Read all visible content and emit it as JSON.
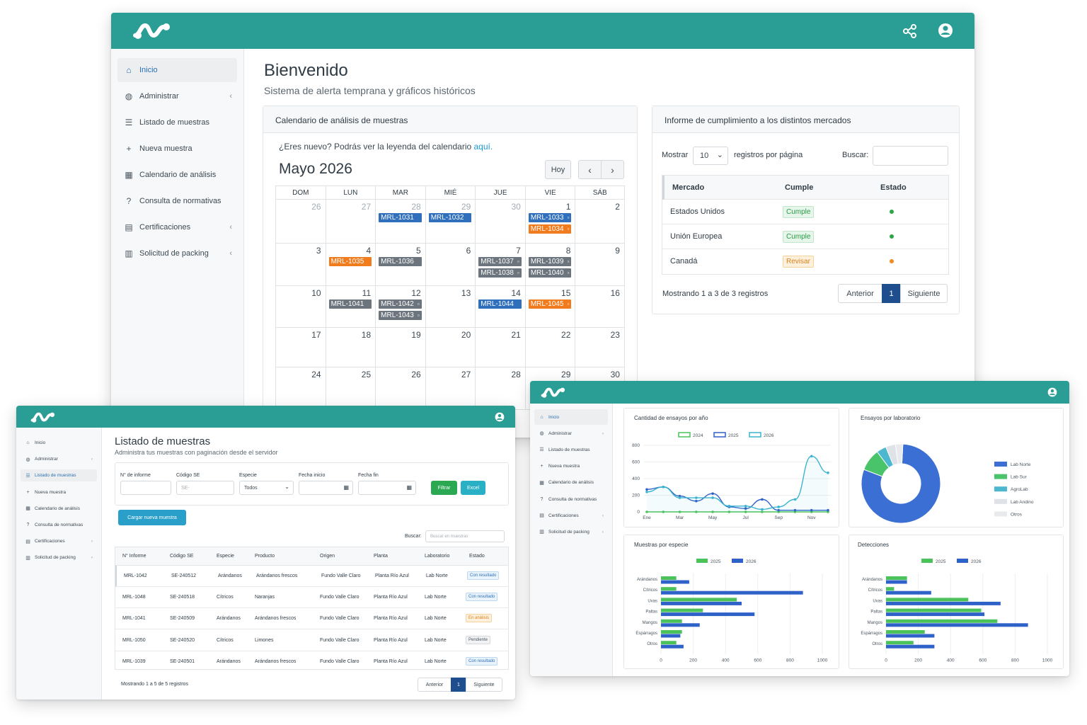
{
  "main": {
    "title": "Bienvenido",
    "subtitle": "Sistema de alerta temprana y gráficos históricos",
    "sidebar": [
      {
        "label": "Inicio",
        "icon": "home-icon",
        "active": true
      },
      {
        "label": "Administrar",
        "icon": "palette-icon",
        "chevron": true
      },
      {
        "label": "Listado de muestras",
        "icon": "list-icon"
      },
      {
        "label": "Nueva muestra",
        "icon": "plus-icon"
      },
      {
        "label": "Calendario de análisis",
        "icon": "calendar-icon"
      },
      {
        "label": "Consulta de normativas",
        "icon": "question-icon"
      },
      {
        "label": "Certificaciones",
        "icon": "file-icon",
        "chevron": true
      },
      {
        "label": "Solicitud de packing",
        "icon": "bar-chart-icon",
        "chevron": true
      }
    ],
    "calendar": {
      "header": "Calendario de análisis de muestras",
      "intro": "¿Eres nuevo? Podrás ver la leyenda del calendario ",
      "intro_link": "aquí.",
      "month": "Mayo 2026",
      "today": "Hoy",
      "weekdays": [
        "DOM",
        "LUN",
        "MAR",
        "MIÉ",
        "JUE",
        "VIE",
        "SÁB"
      ],
      "weeks": [
        [
          {
            "d": "26",
            "m": true
          },
          {
            "d": "27",
            "m": true
          },
          {
            "d": "28",
            "m": true
          },
          {
            "d": "29",
            "m": true
          },
          {
            "d": "30",
            "m": true
          },
          {
            "d": "1"
          },
          {
            "d": "2"
          }
        ],
        [
          {
            "d": "3"
          },
          {
            "d": "4"
          },
          {
            "d": "5"
          },
          {
            "d": "6"
          },
          {
            "d": "7"
          },
          {
            "d": "8"
          },
          {
            "d": "9"
          }
        ],
        [
          {
            "d": "10"
          },
          {
            "d": "11"
          },
          {
            "d": "12"
          },
          {
            "d": "13"
          },
          {
            "d": "14"
          },
          {
            "d": "15"
          },
          {
            "d": "16"
          }
        ],
        [
          {
            "d": "17"
          },
          {
            "d": "18"
          },
          {
            "d": "19"
          },
          {
            "d": "20"
          },
          {
            "d": "21"
          },
          {
            "d": "22"
          },
          {
            "d": "23"
          }
        ],
        [
          {
            "d": "24"
          },
          {
            "d": "25"
          },
          {
            "d": "26"
          },
          {
            "d": "27"
          },
          {
            "d": "28"
          },
          {
            "d": "29"
          },
          {
            "d": "30"
          }
        ]
      ],
      "events": [
        {
          "week": 0,
          "day": 2,
          "slot": 0,
          "label": "MRL-1031",
          "color": "#2f6fbb"
        },
        {
          "week": 0,
          "day": 3,
          "slot": 0,
          "label": "MRL-1032",
          "color": "#2f6fbb"
        },
        {
          "week": 0,
          "day": 5,
          "slot": 0,
          "label": "MRL-1033",
          "color": "#2f6fbb",
          "mark": "▫"
        },
        {
          "week": 0,
          "day": 5,
          "slot": 1,
          "label": "MRL-1034",
          "color": "#f07c1e",
          "mark": "▫"
        },
        {
          "week": 1,
          "day": 1,
          "slot": 0,
          "label": "MRL-1035",
          "color": "#f07c1e"
        },
        {
          "week": 1,
          "day": 2,
          "slot": 0,
          "label": "MRL-1036",
          "color": "#6c757d"
        },
        {
          "week": 1,
          "day": 4,
          "slot": 0,
          "label": "MRL-1037",
          "color": "#6c757d",
          "mark": "▫"
        },
        {
          "week": 1,
          "day": 4,
          "slot": 1,
          "label": "MRL-1038",
          "color": "#6c757d",
          "mark": "▫"
        },
        {
          "week": 1,
          "day": 5,
          "slot": 0,
          "label": "MRL-1039",
          "color": "#6c757d",
          "mark": "▫"
        },
        {
          "week": 1,
          "day": 5,
          "slot": 1,
          "label": "MRL-1040",
          "color": "#6c757d",
          "mark": "▫"
        },
        {
          "week": 2,
          "day": 1,
          "slot": 0,
          "label": "MRL-1041",
          "color": "#6c757d"
        },
        {
          "week": 2,
          "day": 2,
          "slot": 0,
          "label": "MRL-1042",
          "color": "#6c757d",
          "mark": "▫"
        },
        {
          "week": 2,
          "day": 2,
          "slot": 1,
          "label": "MRL-1043",
          "color": "#6c757d",
          "mark": "▫"
        },
        {
          "week": 2,
          "day": 4,
          "slot": 0,
          "label": "MRL-1044",
          "color": "#2f6fbb"
        },
        {
          "week": 2,
          "day": 5,
          "slot": 0,
          "label": "MRL-1045",
          "color": "#f07c1e",
          "mark": "▫"
        }
      ]
    },
    "compliance": {
      "header": "Informe de cumplimiento a los distintos mercados",
      "show": "Mostrar",
      "page_size": "10",
      "per_page": "registros por página",
      "search": "Buscar:",
      "columns": [
        "Mercado",
        "Cumple",
        "Estado"
      ],
      "rows": [
        {
          "market": "Estados Unidos",
          "status": "Cumple",
          "kind": "ok",
          "dot": "#2aa845"
        },
        {
          "market": "Unión Europea",
          "status": "Cumple",
          "kind": "ok",
          "dot": "#2aa845"
        },
        {
          "market": "Canadá",
          "status": "Revisar",
          "kind": "warn",
          "dot": "#f28b1f"
        }
      ],
      "info": "Mostrando 1 a 3 de 3 registros",
      "prev": "Anterior",
      "page": "1",
      "next": "Siguiente"
    }
  },
  "listado": {
    "title": "Listado de muestras",
    "subtitle": "Administra tus muestras con paginación desde el servidor",
    "sidebar": [
      {
        "label": "Inicio",
        "icon": "home-icon"
      },
      {
        "label": "Administrar",
        "icon": "palette-icon",
        "chevron": true
      },
      {
        "label": "Listado de muestras",
        "icon": "list-icon",
        "active": true
      },
      {
        "label": "Nueva muestra",
        "icon": "plus-icon"
      },
      {
        "label": "Calendario de análisis",
        "icon": "calendar-icon"
      },
      {
        "label": "Consulta de normativas",
        "icon": "question-icon"
      },
      {
        "label": "Certificaciones",
        "icon": "file-icon",
        "chevron": true
      },
      {
        "label": "Solicitud de packing",
        "icon": "bar-chart-icon",
        "chevron": true
      }
    ],
    "filters": {
      "informe_label": "N° de informe",
      "codigo_label": "Código SE",
      "codigo_placeholder": "SE-",
      "especie_label": "Especie",
      "especie_value": "Todos",
      "inicio_label": "Fecha inicio",
      "fin_label": "Fecha fin",
      "filter_btn": "Filtrar",
      "excel_btn": "Excel"
    },
    "upload_btn": "Cargar nueva muestra",
    "search_label": "Buscar:",
    "search_placeholder": "Buscar en muestras",
    "columns": [
      "N° Informe",
      "Código SE",
      "Especie",
      "Producto",
      "Origen",
      "Planta",
      "Laboratorio",
      "Estado"
    ],
    "rows": [
      {
        "c": [
          "MRL-1042",
          "SE-240512",
          "Arándanos",
          "Arándanos frescos",
          "Fundo Valle Claro",
          "Planta Río Azul",
          "Lab Norte"
        ],
        "status": "Con resultado",
        "kind": "info"
      },
      {
        "c": [
          "MRL-1048",
          "SE-240518",
          "Cítricos",
          "Naranjas",
          "Fundo Valle Claro",
          "Planta Río Azul",
          "Lab Norte"
        ],
        "status": "Con resultado",
        "kind": "info"
      },
      {
        "c": [
          "MRL-1041",
          "SE-240509",
          "Arándanos",
          "Arándanos frescos",
          "Fundo Valle Claro",
          "Planta Río Azul",
          "Lab Norte"
        ],
        "status": "En análisis",
        "kind": "warn"
      },
      {
        "c": [
          "MRL-1050",
          "SE-240520",
          "Cítricos",
          "Limones",
          "Fundo Valle Claro",
          "Planta Río Azul",
          "Lab Norte"
        ],
        "status": "Pendiente",
        "kind": "neutral"
      },
      {
        "c": [
          "MRL-1039",
          "SE-240501",
          "Arándanos",
          "Arándanos frescos",
          "Fundo Valle Claro",
          "Planta Río Azul",
          "Lab Norte"
        ],
        "status": "Con resultado",
        "kind": "info"
      }
    ],
    "info": "Mostrando 1 a 5 de 5 registros",
    "prev": "Anterior",
    "page": "1",
    "next": "Siguiente"
  },
  "dashboard": {
    "sidebar": [
      {
        "label": "Inicio",
        "icon": "home-icon",
        "active": true
      },
      {
        "label": "Administrar",
        "icon": "palette-icon",
        "chevron": true
      },
      {
        "label": "Listado de muestras",
        "icon": "list-icon"
      },
      {
        "label": "Nueva muestra",
        "icon": "plus-icon"
      },
      {
        "label": "Calendario de análisis",
        "icon": "calendar-icon"
      },
      {
        "label": "Consulta de normativas",
        "icon": "question-icon"
      },
      {
        "label": "Certificaciones",
        "icon": "file-icon",
        "chevron": true
      },
      {
        "label": "Solicitud de packing",
        "icon": "bar-chart-icon",
        "chevron": true
      }
    ]
  },
  "chart_data": [
    {
      "type": "line",
      "title": "Cantidad de ensayos por año",
      "x": [
        "Ene",
        "Feb",
        "Mar",
        "Abr",
        "May",
        "Jun",
        "Jul",
        "Ago",
        "Sep",
        "Oct",
        "Nov",
        "Dic"
      ],
      "xticks": [
        "Ene",
        "Mar",
        "May",
        "Jul",
        "Sep",
        "Nov"
      ],
      "ylim": [
        0,
        800
      ],
      "yticks": [
        0,
        200,
        400,
        600,
        800
      ],
      "grid": true,
      "legend": "top",
      "series": [
        {
          "name": "2024",
          "color": "#4cc35a",
          "values": [
            0,
            0,
            0,
            0,
            0,
            0,
            0,
            0,
            0,
            0,
            0,
            0
          ]
        },
        {
          "name": "2025",
          "color": "#2f62c8",
          "values": [
            270,
            300,
            190,
            130,
            220,
            60,
            40,
            150,
            20,
            20,
            20,
            20
          ]
        },
        {
          "name": "2026",
          "color": "#3ab4d0",
          "values": [
            240,
            300,
            170,
            170,
            170,
            70,
            70,
            30,
            60,
            150,
            670,
            470
          ]
        }
      ]
    },
    {
      "type": "pie",
      "title": "Ensayos por laboratorio",
      "legend": "right",
      "labels": [
        "Lab Norte",
        "Lab Sur",
        "AgroLab",
        "Lab Andino",
        "Otros"
      ],
      "values": [
        80,
        9,
        4,
        4,
        3
      ],
      "colors": [
        "#3b6fd4",
        "#49c46a",
        "#4cb7cf",
        "#dfe2e6",
        "#e8eaed"
      ]
    },
    {
      "type": "bar",
      "orientation": "horizontal",
      "title": "Muestras por especie",
      "categories": [
        "Arándanos",
        "Cítricos",
        "Uvas",
        "Paltas",
        "Mangos",
        "Espárragos",
        "Otros"
      ],
      "xlim": [
        0,
        1000
      ],
      "xticks": [
        0,
        200,
        400,
        600,
        800,
        1000
      ],
      "legend": "top",
      "series": [
        {
          "name": "2025",
          "color": "#4cc35a",
          "values": [
            95,
            95,
            470,
            260,
            130,
            130,
            95
          ]
        },
        {
          "name": "2026",
          "color": "#2f62c8",
          "values": [
            175,
            880,
            500,
            580,
            240,
            120,
            140
          ]
        }
      ]
    },
    {
      "type": "bar",
      "orientation": "horizontal",
      "title": "Detecciones",
      "categories": [
        "Arándanos",
        "Cítricos",
        "Uvas",
        "Paltas",
        "Mangos",
        "Espárragos",
        "Otros"
      ],
      "xlim": [
        0,
        1000
      ],
      "xticks": [
        0,
        200,
        400,
        600,
        800,
        1000
      ],
      "legend": "top",
      "series": [
        {
          "name": "2025",
          "color": "#4cc35a",
          "values": [
            130,
            50,
            510,
            590,
            690,
            240,
            170
          ]
        },
        {
          "name": "2026",
          "color": "#2f62c8",
          "values": [
            130,
            280,
            710,
            610,
            880,
            300,
            300
          ]
        }
      ]
    }
  ]
}
